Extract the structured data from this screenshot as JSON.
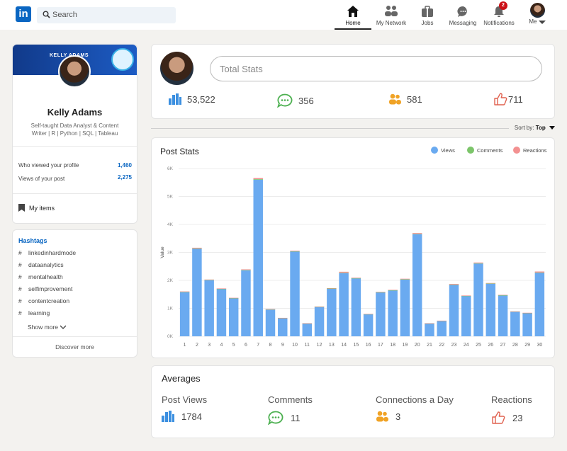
{
  "nav": {
    "logo": "in",
    "search_placeholder": "Search",
    "items": [
      {
        "label": "Home",
        "icon": "home-icon"
      },
      {
        "label": "My Network",
        "icon": "network-icon"
      },
      {
        "label": "Jobs",
        "icon": "briefcase-icon"
      },
      {
        "label": "Messaging",
        "icon": "message-icon"
      },
      {
        "label": "Notifications",
        "icon": "bell-icon",
        "badge": "2"
      },
      {
        "label": "Me",
        "icon": "avatar-icon"
      }
    ]
  },
  "profile": {
    "banner_text": "KELLY ADAMS",
    "name": "Kelly Adams",
    "tagline": "Self-taught Data Analyst & Content Writer | R | Python | SQL | Tableau",
    "stats": [
      {
        "label": "Who viewed your profile",
        "value": "1,460"
      },
      {
        "label": "Views of your post",
        "value": "2,275"
      }
    ],
    "my_items": "My items"
  },
  "hashtags": {
    "title": "Hashtags",
    "items": [
      "linkedinhardmode",
      "dataanalytics",
      "mentalhealth",
      "selfimprovement",
      "contentcreation",
      "learning"
    ],
    "show_more": "Show more",
    "discover": "Discover more"
  },
  "total_stats": {
    "placeholder": "Total Stats",
    "values": [
      {
        "icon": "bar-chart-icon",
        "value": "53,522"
      },
      {
        "icon": "comment-icon",
        "value": "356"
      },
      {
        "icon": "people-icon",
        "value": "581"
      },
      {
        "icon": "thumbs-up-icon",
        "value": "711"
      }
    ]
  },
  "sort": {
    "label": "Sort by:",
    "value": "Top"
  },
  "chart_data": {
    "type": "bar",
    "title": "Post Stats",
    "ylabel": "Value",
    "xlabel": "",
    "ylim": [
      0,
      6000
    ],
    "yticks": [
      "0K",
      "1K",
      "2K",
      "3K",
      "4K",
      "5K",
      "6K"
    ],
    "categories": [
      "1",
      "2",
      "3",
      "4",
      "5",
      "6",
      "7",
      "8",
      "9",
      "10",
      "11",
      "12",
      "13",
      "14",
      "15",
      "16",
      "17",
      "18",
      "19",
      "20",
      "21",
      "22",
      "23",
      "24",
      "25",
      "26",
      "27",
      "28",
      "29",
      "30"
    ],
    "series": [
      {
        "name": "Views",
        "color": "#6aaaf0",
        "values": [
          1580,
          3130,
          2010,
          1690,
          1360,
          2360,
          5600,
          960,
          650,
          3030,
          460,
          1050,
          1700,
          2260,
          2070,
          790,
          1570,
          1640,
          2030,
          3650,
          460,
          550,
          1840,
          1440,
          2600,
          1880,
          1460,
          880,
          830,
          2270
        ]
      },
      {
        "name": "Comments",
        "color": "#7cc56a",
        "values": [
          10,
          12,
          8,
          9,
          7,
          14,
          20,
          5,
          4,
          12,
          3,
          6,
          9,
          13,
          11,
          5,
          8,
          9,
          11,
          15,
          3,
          4,
          10,
          8,
          14,
          10,
          8,
          5,
          5,
          12
        ]
      },
      {
        "name": "Reactions",
        "color": "#f39191",
        "values": [
          15,
          25,
          12,
          14,
          10,
          20,
          40,
          8,
          6,
          22,
          5,
          9,
          14,
          35,
          17,
          7,
          13,
          14,
          18,
          28,
          5,
          6,
          22,
          12,
          25,
          16,
          14,
          7,
          7,
          35
        ]
      }
    ],
    "grid": true,
    "legend": "top-right"
  },
  "averages": {
    "title": "Averages",
    "items": [
      {
        "label": "Post Views",
        "value": "1784",
        "icon": "bar-chart-icon"
      },
      {
        "label": "Comments",
        "value": "11",
        "icon": "comment-icon"
      },
      {
        "label": "Connections a Day",
        "value": "3",
        "icon": "people-icon"
      },
      {
        "label": "Reactions",
        "value": "23",
        "icon": "thumbs-up-icon"
      }
    ]
  }
}
